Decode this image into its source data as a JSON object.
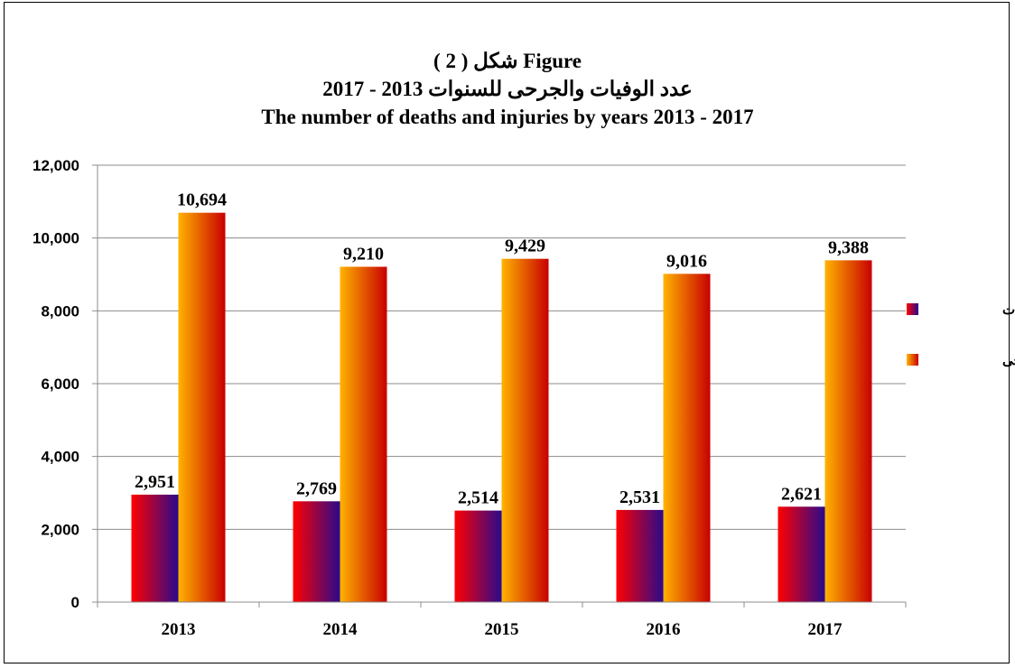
{
  "chart_data": {
    "type": "bar",
    "title": "شكل ( 2 ) Figure",
    "subtitle_ar": "عدد الوفيات والجرحى للسنوات 2013 - 2017",
    "subtitle_en": "The number of deaths and injuries by years 2013 - 2017",
    "xlabel": "",
    "ylabel": "",
    "ylim": [
      0,
      12000
    ],
    "yticks": [
      "0",
      "2,000",
      "4,000",
      "6,000",
      "8,000",
      "10,000",
      "12,000"
    ],
    "categories": [
      "2013",
      "2014",
      "2015",
      "2016",
      "2017"
    ],
    "grid": true,
    "legend_position": "right",
    "series": [
      {
        "name": "عدد الوفيات",
        "values": [
          2951,
          2769,
          2514,
          2531,
          2621
        ],
        "labels": [
          "2,951",
          "2,769",
          "2,514",
          "2,531",
          "2,621"
        ],
        "colors": [
          "#ff0000",
          "#2a0a8c"
        ]
      },
      {
        "name": "عدد الجرحى",
        "values": [
          10694,
          9210,
          9429,
          9016,
          9388
        ],
        "labels": [
          "10,694",
          "9,210",
          "9,429",
          "9,016",
          "9,388"
        ],
        "colors": [
          "#ffb300",
          "#c80000"
        ]
      }
    ]
  }
}
